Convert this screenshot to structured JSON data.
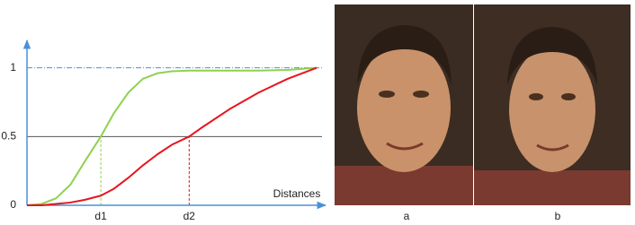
{
  "chart_data": {
    "type": "line",
    "x": [
      0,
      0.05,
      0.1,
      0.15,
      0.2,
      0.255,
      0.3,
      0.35,
      0.4,
      0.45,
      0.5,
      0.56,
      0.6,
      0.7,
      0.8,
      0.9,
      1
    ],
    "series": [
      {
        "color": "#8fd14f",
        "values": [
          0,
          0.01,
          0.05,
          0.15,
          0.32,
          0.5,
          0.67,
          0.82,
          0.92,
          0.96,
          0.975,
          0.98,
          0.98,
          0.98,
          0.98,
          0.985,
          1
        ]
      },
      {
        "color": "#e8141c",
        "values": [
          0,
          0,
          0.01,
          0.02,
          0.04,
          0.07,
          0.12,
          0.2,
          0.29,
          0.37,
          0.44,
          0.5,
          0.56,
          0.7,
          0.82,
          0.92,
          1
        ]
      }
    ],
    "xlabel": "Distances",
    "xlim": [
      0,
      1
    ],
    "xticks": [
      {
        "value": 0.255,
        "label": "d1"
      },
      {
        "value": 0.56,
        "label": "d2"
      }
    ],
    "ylim": [
      0,
      1.2
    ],
    "yticks": [
      0,
      0.5,
      1
    ]
  },
  "panels": [
    {
      "label": "a"
    },
    {
      "label": "b"
    }
  ]
}
